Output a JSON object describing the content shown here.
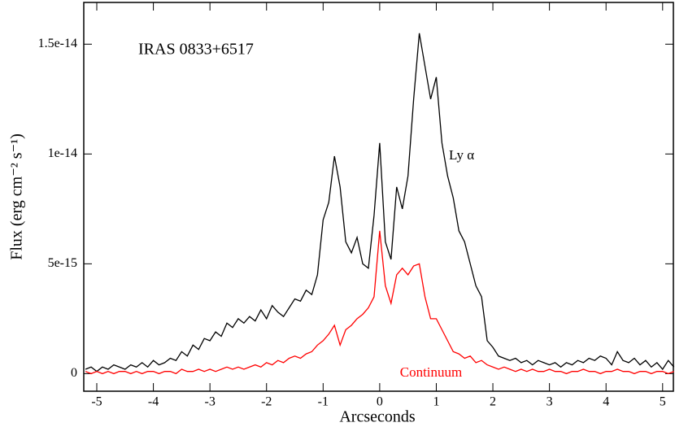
{
  "chart_data": {
    "type": "line",
    "annotations": [
      "IRAS 0833+6517"
    ],
    "x_label": "Arcseconds",
    "y_label": "Flux  (erg cm⁻² s⁻¹)",
    "xlim": [
      -5.23,
      5.19
    ],
    "ylim": [
      -8e-16,
      1.69e-14
    ],
    "xticks": [
      -5,
      -4,
      -3,
      -2,
      -1,
      0,
      1,
      2,
      3,
      4,
      5
    ],
    "yticks": [
      0,
      5e-15,
      1e-14,
      1.5e-14
    ],
    "x": [
      -5.2,
      -5.1,
      -5,
      -4.9,
      -4.8,
      -4.7,
      -4.6,
      -4.5,
      -4.4,
      -4.3,
      -4.2,
      -4.1,
      -4,
      -3.9,
      -3.8,
      -3.7,
      -3.6,
      -3.5,
      -3.4,
      -3.3,
      -3.2,
      -3.1,
      -3,
      -2.9,
      -2.8,
      -2.7,
      -2.6,
      -2.5,
      -2.4,
      -2.3,
      -2.2,
      -2.1,
      -2,
      -1.9,
      -1.8,
      -1.7,
      -1.6,
      -1.5,
      -1.4,
      -1.3,
      -1.2,
      -1.1,
      -1,
      -0.9,
      -0.8,
      -0.7,
      -0.6,
      -0.5,
      -0.4,
      -0.3,
      -0.2,
      -0.1,
      0,
      0.1,
      0.2,
      0.3,
      0.4,
      0.5,
      0.6,
      0.7,
      0.8,
      0.9,
      1,
      1.1,
      1.2,
      1.3,
      1.4,
      1.5,
      1.6,
      1.7,
      1.8,
      1.9,
      2,
      2.1,
      2.2,
      2.3,
      2.4,
      2.5,
      2.6,
      2.7,
      2.8,
      2.9,
      3,
      3.1,
      3.2,
      3.3,
      3.4,
      3.5,
      3.6,
      3.7,
      3.8,
      3.9,
      4,
      4.1,
      4.2,
      4.3,
      4.4,
      4.5,
      4.6,
      4.7,
      4.8,
      4.9,
      5,
      5.1,
      5.2
    ],
    "series": [
      {
        "name": "Ly α",
        "color": "#000000",
        "values": [
          2e-16,
          3e-16,
          1e-16,
          3e-16,
          2e-16,
          4e-16,
          3e-16,
          2e-16,
          4e-16,
          3e-16,
          5e-16,
          3e-16,
          6e-16,
          4e-16,
          5e-16,
          7e-16,
          6e-16,
          1e-15,
          8e-16,
          1.3e-15,
          1.1e-15,
          1.6e-15,
          1.5e-15,
          1.9e-15,
          1.7e-15,
          2.3e-15,
          2.1e-15,
          2.5e-15,
          2.3e-15,
          2.6e-15,
          2.4e-15,
          2.9e-15,
          2.5e-15,
          3.1e-15,
          2.8e-15,
          2.6e-15,
          3e-15,
          3.4e-15,
          3.3e-15,
          3.8e-15,
          3.6e-15,
          4.5e-15,
          7e-15,
          7.8e-15,
          9.9e-15,
          8.5e-15,
          6e-15,
          5.5e-15,
          6.2e-15,
          5e-15,
          4.8e-15,
          7.2e-15,
          1.05e-14,
          6e-15,
          5.2e-15,
          8.5e-15,
          7.5e-15,
          9e-15,
          1.25e-14,
          1.55e-14,
          1.4e-14,
          1.25e-14,
          1.35e-14,
          1.05e-14,
          9e-15,
          8e-15,
          6.5e-15,
          6e-15,
          5e-15,
          4e-15,
          3.5e-15,
          1.5e-15,
          1.2e-15,
          8e-16,
          7e-16,
          6e-16,
          7e-16,
          5e-16,
          6e-16,
          4e-16,
          6e-16,
          5e-16,
          4e-16,
          5e-16,
          3e-16,
          5e-16,
          4e-16,
          6e-16,
          5e-16,
          7e-16,
          6e-16,
          8e-16,
          7e-16,
          4e-16,
          1e-15,
          6e-16,
          5e-16,
          7e-16,
          4e-16,
          6e-16,
          3e-16,
          5e-16,
          2e-16,
          6e-16,
          3e-16
        ]
      },
      {
        "name": "Continuum",
        "color": "#ff0000",
        "values": [
          1e-16,
          0,
          1e-16,
          0,
          1e-16,
          0,
          1e-16,
          1e-16,
          0,
          1e-16,
          0,
          1e-16,
          1e-16,
          0,
          1e-16,
          1e-16,
          0,
          2e-16,
          1e-16,
          1e-16,
          2e-16,
          1e-16,
          2e-16,
          1e-16,
          2e-16,
          3e-16,
          2e-16,
          3e-16,
          2e-16,
          3e-16,
          4e-16,
          3e-16,
          5e-16,
          4e-16,
          6e-16,
          5e-16,
          7e-16,
          8e-16,
          7e-16,
          9e-16,
          1e-15,
          1.3e-15,
          1.5e-15,
          1.8e-15,
          2.2e-15,
          1.3e-15,
          2e-15,
          2.2e-15,
          2.5e-15,
          2.7e-15,
          3e-15,
          3.5e-15,
          6.5e-15,
          4e-15,
          3.2e-15,
          4.5e-15,
          4.8e-15,
          4.5e-15,
          4.9e-15,
          5e-15,
          3.5e-15,
          2.5e-15,
          2.5e-15,
          2e-15,
          1.5e-15,
          1e-15,
          9e-16,
          7e-16,
          8e-16,
          5e-16,
          6e-16,
          4e-16,
          3e-16,
          2e-16,
          3e-16,
          2e-16,
          1e-16,
          2e-16,
          1e-16,
          2e-16,
          1e-16,
          1e-16,
          2e-16,
          1e-16,
          1e-16,
          0,
          1e-16,
          1e-16,
          2e-16,
          1e-16,
          1e-16,
          0,
          1e-16,
          1e-16,
          2e-16,
          1e-16,
          1e-16,
          0,
          1e-16,
          1e-16,
          0,
          1e-16,
          1e-16,
          0,
          1e-16
        ]
      }
    ]
  }
}
